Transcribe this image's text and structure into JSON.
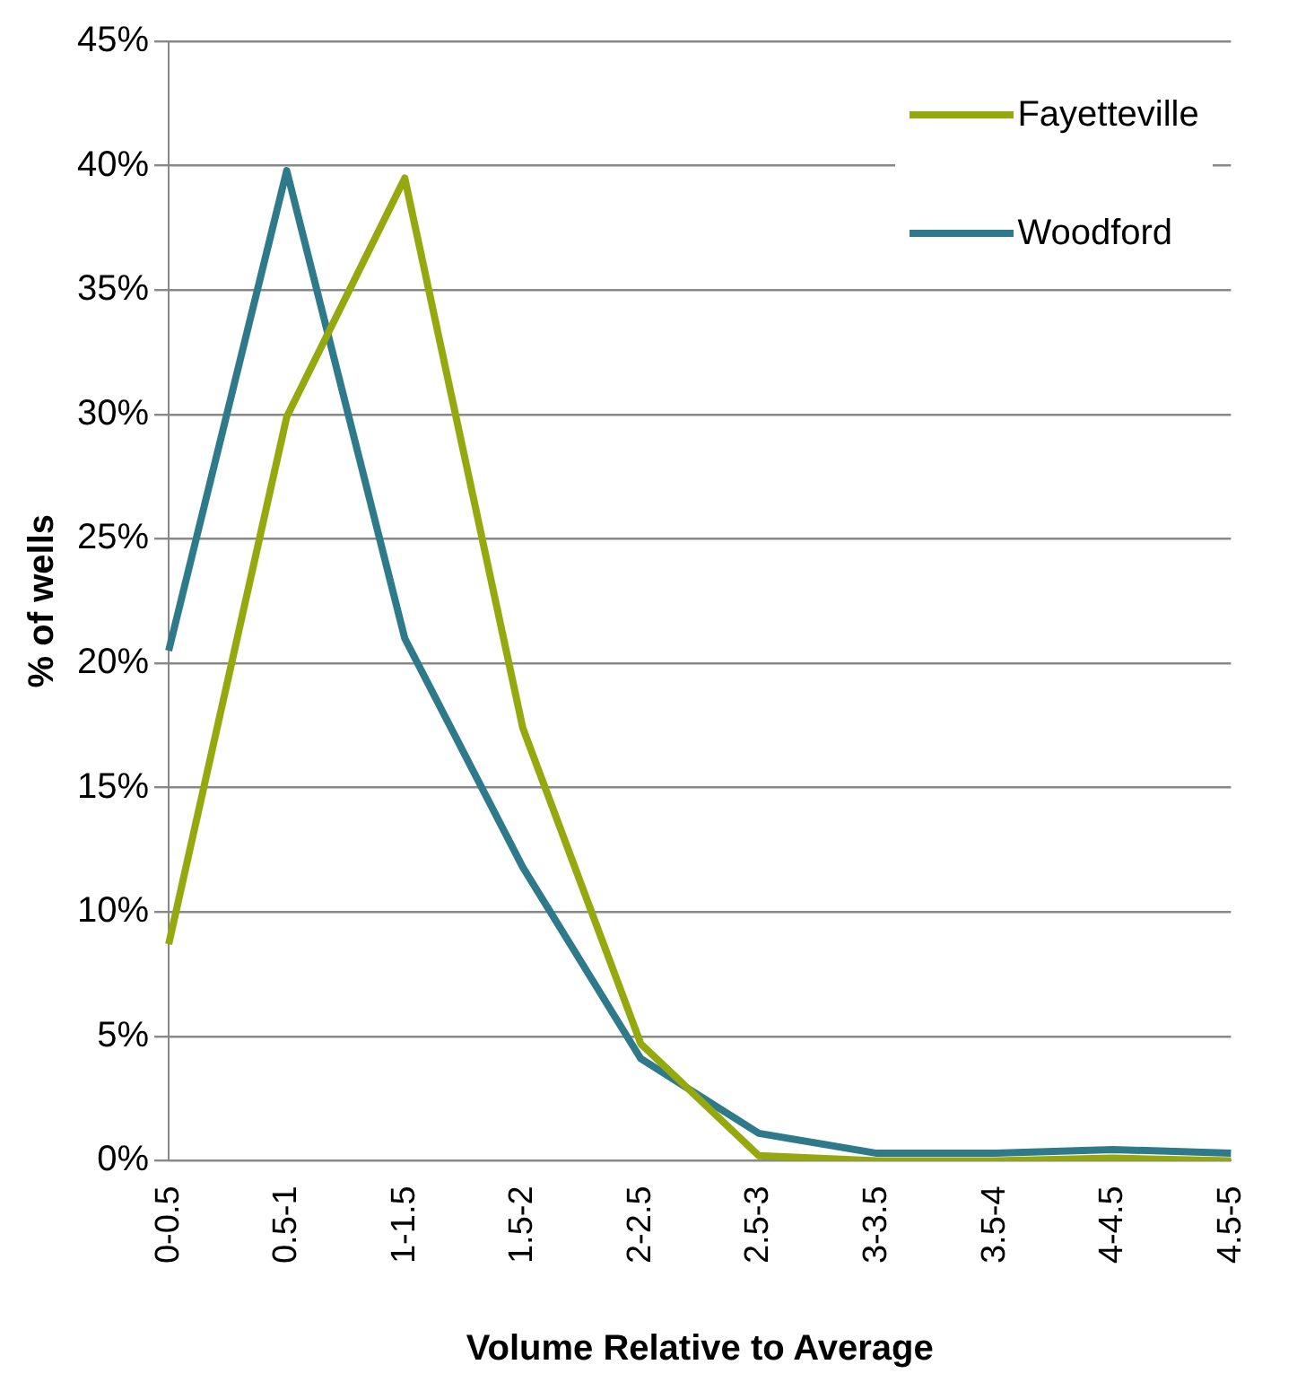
{
  "chart_data": {
    "type": "line",
    "xlabel": "Volume Relative to Average",
    "ylabel": "% of wells",
    "categories": [
      "0-0.5",
      "0.5-1",
      "1-1.5",
      "1.5-2",
      "2-2.5",
      "2.5-3",
      "3-3.5",
      "3.5-4",
      "4-4.5",
      "4.5-5"
    ],
    "series": [
      {
        "name": "Fayetteville",
        "color": "#95a80e",
        "values": [
          8.7,
          29.9,
          39.5,
          17.4,
          4.7,
          0.2,
          0,
          0,
          0.1,
          0
        ]
      },
      {
        "name": "Woodford",
        "color": "#2f7a8a",
        "values": [
          20.5,
          39.8,
          21.0,
          11.8,
          4.1,
          1.1,
          0.3,
          0.3,
          0.45,
          0.3
        ]
      }
    ],
    "ylim": [
      0,
      45
    ],
    "yticks": [
      {
        "value": 0,
        "label": "0%"
      },
      {
        "value": 5,
        "label": "5%"
      },
      {
        "value": 10,
        "label": "10%"
      },
      {
        "value": 15,
        "label": "15%"
      },
      {
        "value": 20,
        "label": "20%"
      },
      {
        "value": 25,
        "label": "25%"
      },
      {
        "value": 30,
        "label": "30%"
      },
      {
        "value": 35,
        "label": "35%"
      },
      {
        "value": 40,
        "label": "40%"
      },
      {
        "value": 45,
        "label": "45%"
      }
    ],
    "grid": "y",
    "legend": "top right",
    "marker": "none",
    "line_style": "solid"
  }
}
